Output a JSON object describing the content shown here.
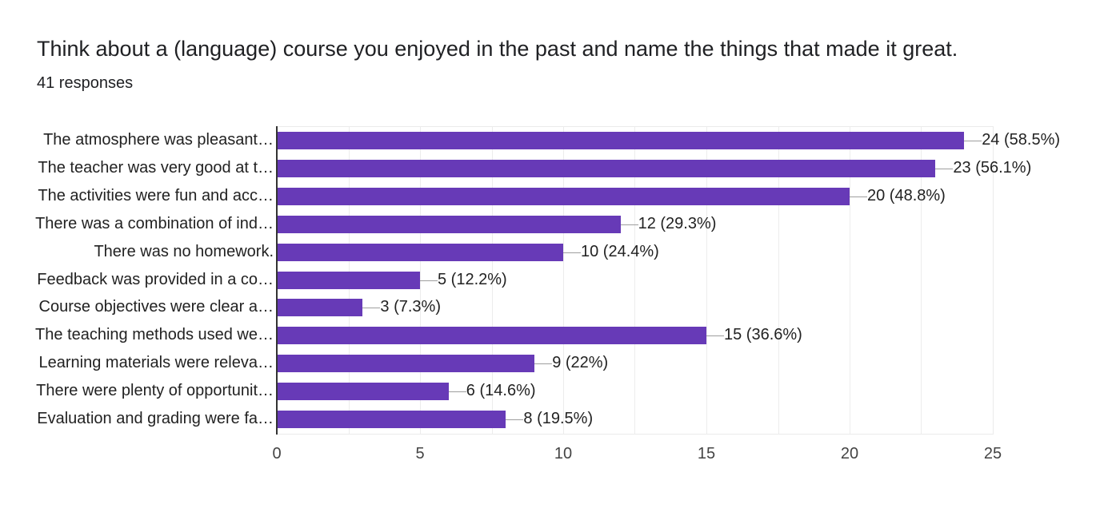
{
  "header": {
    "title": "Think about a (language) course you enjoyed in the past and name the things that made it great.",
    "responses": "41 responses"
  },
  "colors": {
    "bar": "#673ab7",
    "axis": "#333333",
    "grid": "#ececec"
  },
  "axis": {
    "ticks": [
      "0",
      "5",
      "10",
      "15",
      "20",
      "25"
    ]
  },
  "rows": [
    {
      "label": "The atmosphere was pleasant…",
      "value": 24,
      "text": "24 (58.5%)"
    },
    {
      "label": "The teacher was very good at t…",
      "value": 23,
      "text": "23 (56.1%)"
    },
    {
      "label": "The activities were fun and acc…",
      "value": 20,
      "text": "20 (48.8%)"
    },
    {
      "label": "There was a combination of ind…",
      "value": 12,
      "text": "12 (29.3%)"
    },
    {
      "label": "There was no homework.",
      "value": 10,
      "text": "10 (24.4%)"
    },
    {
      "label": "Feedback was provided in a co…",
      "value": 5,
      "text": "5 (12.2%)"
    },
    {
      "label": "Course objectives were clear a…",
      "value": 3,
      "text": "3 (7.3%)"
    },
    {
      "label": "The teaching methods used we…",
      "value": 15,
      "text": "15 (36.6%)"
    },
    {
      "label": "Learning materials were releva…",
      "value": 9,
      "text": "9 (22%)"
    },
    {
      "label": "There were plenty of opportunit…",
      "value": 6,
      "text": "6 (14.6%)"
    },
    {
      "label": "Evaluation and grading were fa…",
      "value": 8,
      "text": "8 (19.5%)"
    }
  ],
  "chart_data": {
    "type": "bar",
    "orientation": "horizontal",
    "title": "Think about a (language) course you enjoyed in the past and name the things that made it great.",
    "subtitle": "41 responses",
    "categories": [
      "The atmosphere was pleasant…",
      "The teacher was very good at t…",
      "The activities were fun and acc…",
      "There was a combination of ind…",
      "There was no homework.",
      "Feedback was provided in a co…",
      "Course objectives were clear a…",
      "The teaching methods used we…",
      "Learning materials were releva…",
      "There were plenty of opportunit…",
      "Evaluation and grading were fa…"
    ],
    "values": [
      24,
      23,
      20,
      12,
      10,
      5,
      3,
      15,
      9,
      6,
      8
    ],
    "percentages": [
      58.5,
      56.1,
      48.8,
      29.3,
      24.4,
      12.2,
      7.3,
      36.6,
      22,
      14.6,
      19.5
    ],
    "data_labels": [
      "24 (58.5%)",
      "23 (56.1%)",
      "20 (48.8%)",
      "12 (29.3%)",
      "10 (24.4%)",
      "5 (12.2%)",
      "3 (7.3%)",
      "15 (36.6%)",
      "9 (22%)",
      "6 (14.6%)",
      "8 (19.5%)"
    ],
    "xlabel": "",
    "ylabel": "",
    "xlim": [
      0,
      25
    ],
    "xticks": [
      0,
      5,
      10,
      15,
      20,
      25
    ],
    "grid": true,
    "legend": null
  }
}
